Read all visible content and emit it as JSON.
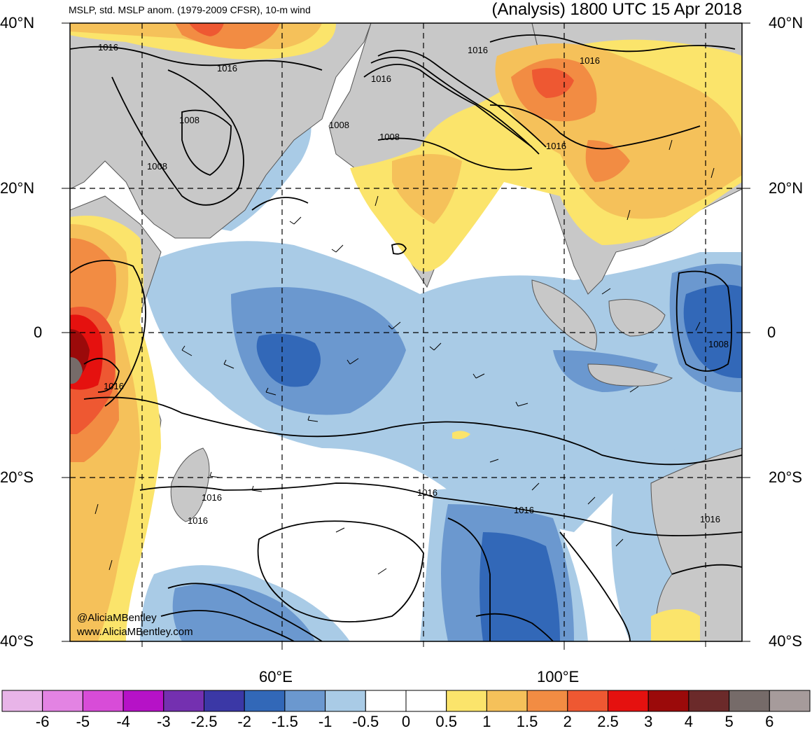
{
  "header": {
    "left_title": "MSLP, std. MSLP anom. (1979-2009 CFSR), 10-m wind",
    "right_title": "(Analysis) 1800 UTC 15 Apr 2018"
  },
  "lat_labels": [
    "40°N",
    "20°N",
    "0",
    "20°S",
    "40°S"
  ],
  "lon_labels": [
    "60°E",
    "100°E"
  ],
  "isobar_labels": [
    "1016",
    "1008"
  ],
  "credits": {
    "twitter": "@AliciaMBentley",
    "website": "www.AliciaMBentley.com"
  },
  "colorbar": {
    "colors": [
      "#e8b4e8",
      "#e383e3",
      "#d84cd8",
      "#b612c7",
      "#7430b0",
      "#3b38a6",
      "#3268b8",
      "#6b98cf",
      "#a9cbe6",
      "#ffffff",
      "#ffffff",
      "#fbe46b",
      "#f5c15a",
      "#f28c43",
      "#ee5832",
      "#e5110f",
      "#9b0a0a",
      "#6b2a2a",
      "#766b69",
      "#a69b9b"
    ],
    "labels": [
      "-6",
      "-5",
      "-4",
      "-3",
      "-2.5",
      "-2",
      "-1.5",
      "-1",
      "-0.5",
      "0",
      "0.5",
      "1",
      "1.5",
      "2",
      "2.5",
      "3",
      "4",
      "5",
      "6"
    ]
  },
  "colors": {
    "land": "#c8c8c8",
    "frame": "#000000"
  }
}
